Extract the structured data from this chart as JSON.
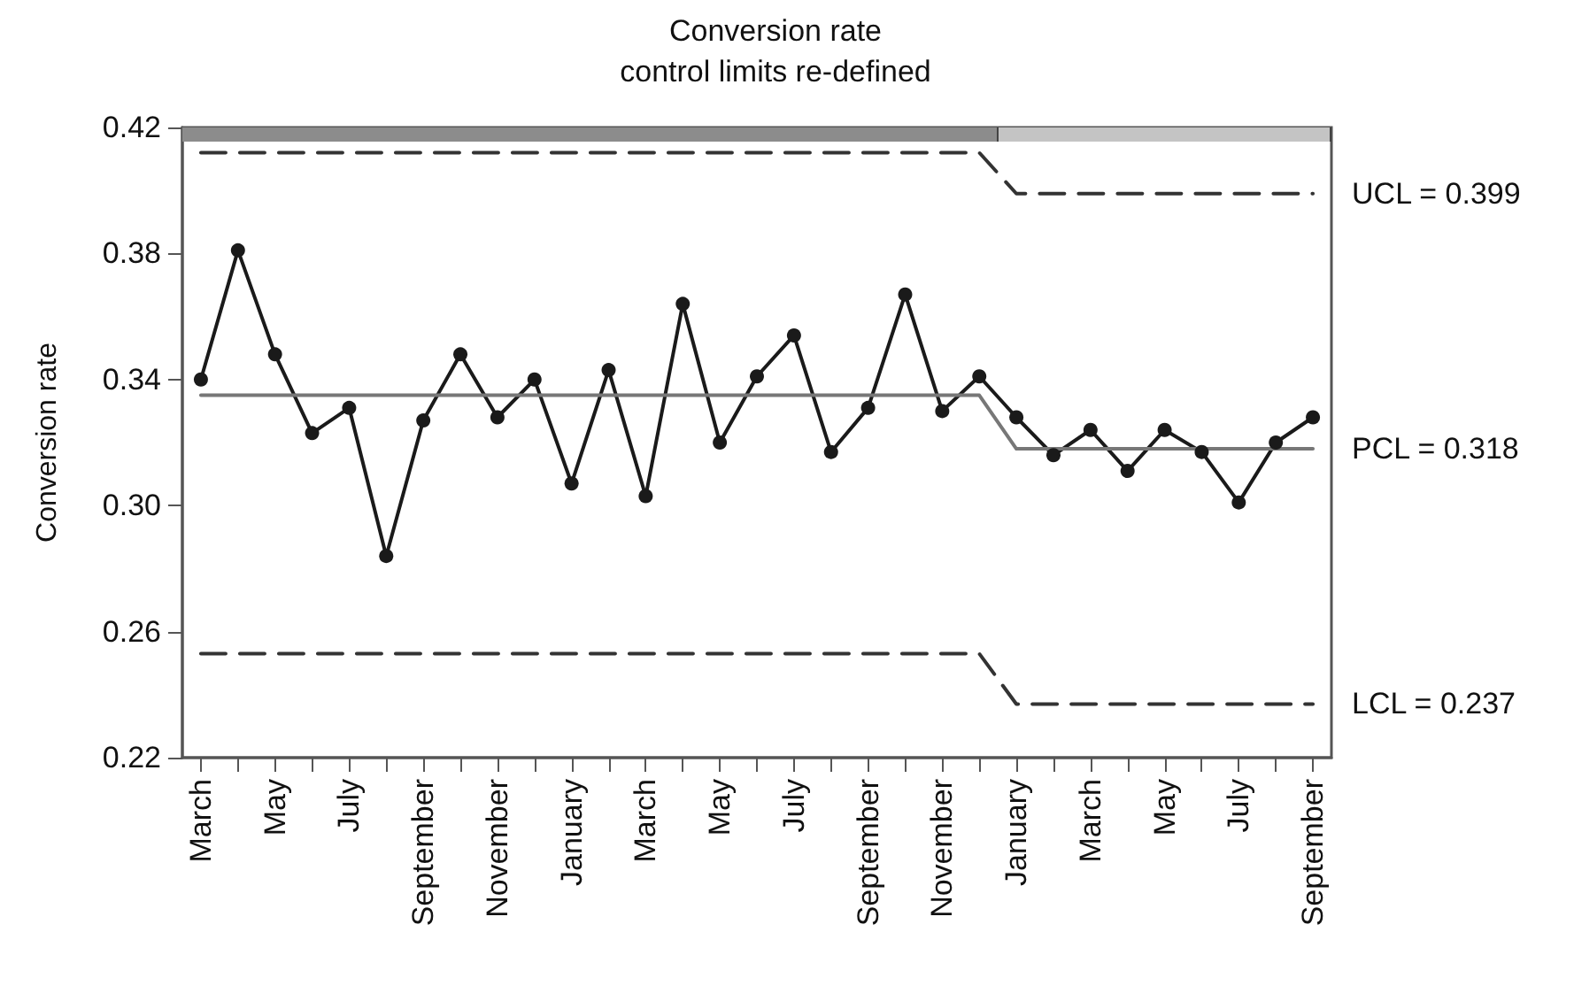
{
  "chart_data": {
    "type": "line",
    "title": "Conversion rate",
    "subtitle": "control limits re-defined",
    "ylabel": "Conversion rate",
    "categories": [
      "March",
      null,
      "May",
      null,
      "July",
      null,
      "September",
      null,
      "November",
      null,
      "January",
      null,
      "March",
      null,
      "May",
      null,
      "July",
      null,
      "September",
      null,
      "November",
      null,
      "January",
      null,
      "March",
      null,
      "May",
      null,
      "July",
      null,
      "September"
    ],
    "ylim": [
      0.22,
      0.42
    ],
    "yticks": [
      0.42,
      0.38,
      0.34,
      {
        "value": 0.3,
        "label": "0.30"
      },
      0.26,
      0.22
    ],
    "grid": false,
    "legend": false,
    "series": [
      {
        "color": "#1a1a1a",
        "marker": "circle",
        "line_style": "solid",
        "values": [
          0.34,
          0.381,
          0.348,
          0.323,
          0.331,
          0.284,
          0.327,
          0.348,
          0.328,
          0.34,
          0.307,
          0.343,
          0.303,
          0.364,
          0.32,
          0.341,
          0.354,
          0.317,
          0.331,
          0.367,
          0.33,
          0.341,
          0.328,
          0.316,
          0.324,
          0.311,
          0.324,
          0.317,
          0.301,
          0.32,
          0.328
        ]
      },
      {
        "type": "line",
        "name": "UCL = 0.399",
        "color": "#333333",
        "marker": "none",
        "line_style": "dashed",
        "values": [
          0.412,
          0.412,
          0.412,
          0.412,
          0.412,
          0.412,
          0.412,
          0.412,
          0.412,
          0.412,
          0.412,
          0.412,
          0.412,
          0.412,
          0.412,
          0.412,
          0.412,
          0.412,
          0.412,
          0.412,
          0.412,
          0.412,
          0.399,
          0.399,
          0.399,
          0.399,
          0.399,
          0.399,
          0.399,
          0.399,
          0.399
        ]
      },
      {
        "type": "line",
        "name": "PCL = 0.318",
        "color": "#777777",
        "marker": "none",
        "line_style": "solid",
        "values": [
          0.335,
          0.335,
          0.335,
          0.335,
          0.335,
          0.335,
          0.335,
          0.335,
          0.335,
          0.335,
          0.335,
          0.335,
          0.335,
          0.335,
          0.335,
          0.335,
          0.335,
          0.335,
          0.335,
          0.335,
          0.335,
          0.335,
          0.318,
          0.318,
          0.318,
          0.318,
          0.318,
          0.318,
          0.318,
          0.318,
          0.318
        ]
      },
      {
        "type": "line",
        "name": "LCL = 0.237",
        "color": "#333333",
        "marker": "none",
        "line_style": "dashed",
        "values": [
          0.253,
          0.253,
          0.253,
          0.253,
          0.253,
          0.253,
          0.253,
          0.253,
          0.253,
          0.253,
          0.253,
          0.253,
          0.253,
          0.253,
          0.253,
          0.253,
          0.253,
          0.253,
          0.253,
          0.253,
          0.253,
          0.253,
          0.237,
          0.237,
          0.237,
          0.237,
          0.237,
          0.237,
          0.237,
          0.237,
          0.237
        ]
      }
    ]
  }
}
